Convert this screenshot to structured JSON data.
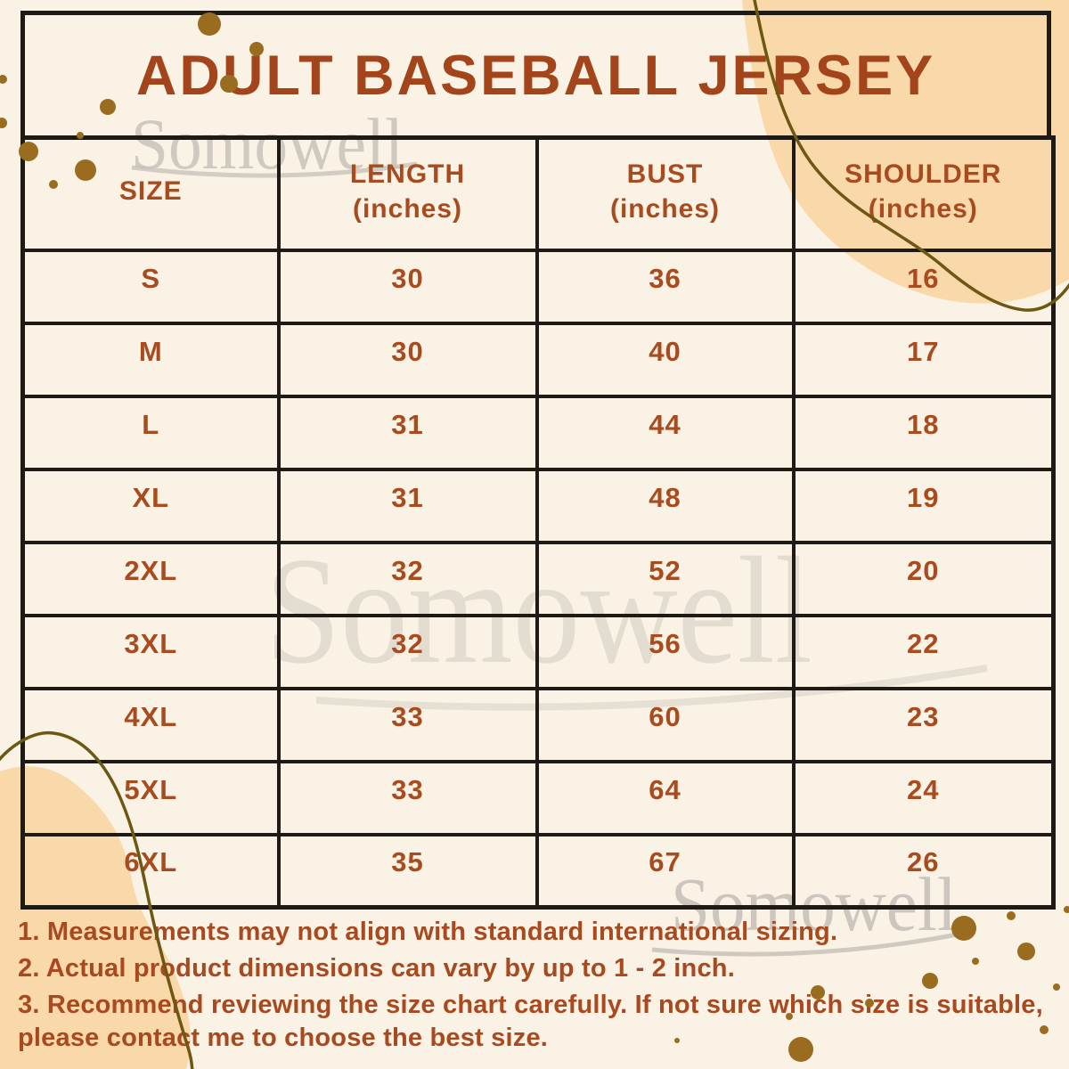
{
  "title": "ADULT BASEBALL JERSEY",
  "watermark": {
    "text": "Somowell"
  },
  "table": {
    "headers": [
      {
        "label": "SIZE",
        "unit": ""
      },
      {
        "label": "LENGTH",
        "unit": "(inches)"
      },
      {
        "label": "BUST",
        "unit": "(inches)"
      },
      {
        "label": "SHOULDER",
        "unit": "(inches)"
      }
    ],
    "rows": [
      {
        "size": "S",
        "length": "30",
        "bust": "36",
        "shoulder": "16"
      },
      {
        "size": "M",
        "length": "30",
        "bust": "40",
        "shoulder": "17"
      },
      {
        "size": "L",
        "length": "31",
        "bust": "44",
        "shoulder": "18"
      },
      {
        "size": "XL",
        "length": "31",
        "bust": "48",
        "shoulder": "19"
      },
      {
        "size": "2XL",
        "length": "32",
        "bust": "52",
        "shoulder": "20"
      },
      {
        "size": "3XL",
        "length": "32",
        "bust": "56",
        "shoulder": "22"
      },
      {
        "size": "4XL",
        "length": "33",
        "bust": "60",
        "shoulder": "23"
      },
      {
        "size": "5XL",
        "length": "33",
        "bust": "64",
        "shoulder": "24"
      },
      {
        "size": "6XL",
        "length": "35",
        "bust": "67",
        "shoulder": "26"
      }
    ]
  },
  "notes": [
    "1. Measurements may not align with standard international sizing.",
    "2. Actual product dimensions can vary by up to 1 - 2 inch.",
    "3. Recommend reviewing the size chart carefully. If not sure which size is suitable, please contact me to choose the best size."
  ],
  "colors": {
    "background": "#FAF2E4",
    "blob_peach": "#F9D8A9",
    "text_rust": "#A8491F",
    "title_rust": "#A3441B",
    "dot_olive": "#9A6C20",
    "curve_olive": "#6C5713",
    "border_black": "#1E1B17",
    "watermark_gray": "#C8C2BA"
  },
  "chart_data": {
    "type": "table",
    "title": "ADULT BASEBALL JERSEY",
    "columns": [
      "SIZE",
      "LENGTH (inches)",
      "BUST (inches)",
      "SHOULDER (inches)"
    ],
    "rows": [
      [
        "S",
        30,
        36,
        16
      ],
      [
        "M",
        30,
        40,
        17
      ],
      [
        "L",
        31,
        44,
        18
      ],
      [
        "XL",
        31,
        48,
        19
      ],
      [
        "2XL",
        32,
        52,
        20
      ],
      [
        "3XL",
        32,
        56,
        22
      ],
      [
        "4XL",
        33,
        60,
        23
      ],
      [
        "5XL",
        33,
        64,
        24
      ],
      [
        "6XL",
        35,
        67,
        26
      ]
    ]
  }
}
